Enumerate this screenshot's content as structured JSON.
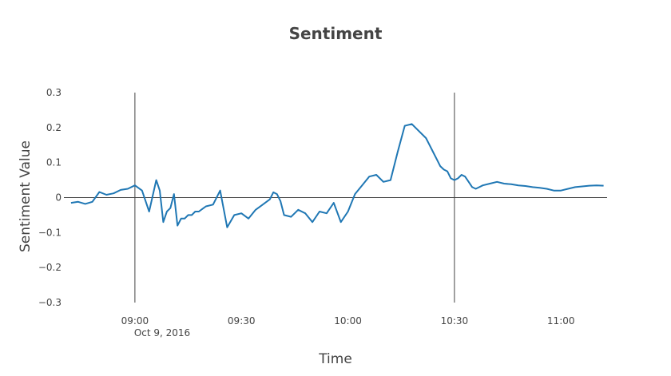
{
  "chart_data": {
    "type": "line",
    "title": "Sentiment",
    "xlabel": "Time",
    "ylabel": "Sentiment Value",
    "x_date_label": "Oct 9, 2016",
    "xlim": [
      "08:40",
      "11:13"
    ],
    "ylim": [
      -0.3,
      0.3
    ],
    "x_ticks": [
      "09:00",
      "09:30",
      "10:00",
      "10:30",
      "11:00"
    ],
    "y_ticks": [
      {
        "value": 0.3,
        "label": "0.3"
      },
      {
        "value": 0.2,
        "label": "0.2"
      },
      {
        "value": 0.1,
        "label": "0.1"
      },
      {
        "value": 0,
        "label": "0"
      },
      {
        "value": -0.1,
        "label": "−0.1"
      },
      {
        "value": -0.2,
        "label": "−0.2"
      },
      {
        "value": -0.3,
        "label": "−0.3"
      }
    ],
    "vertical_lines": [
      "09:00",
      "10:30"
    ],
    "grid": false,
    "line_color": "#1f77b4",
    "series": [
      {
        "x": [
          "08:42",
          "08:44",
          "08:46",
          "08:48",
          "08:50",
          "08:52",
          "08:54",
          "08:56",
          "08:58",
          "09:00",
          "09:02",
          "09:04",
          "09:06",
          "09:07",
          "09:08",
          "09:09",
          "09:10",
          "09:11",
          "09:12",
          "09:13",
          "09:14",
          "09:15",
          "09:16",
          "09:17",
          "09:18",
          "09:20",
          "09:22",
          "09:24",
          "09:26",
          "09:28",
          "09:30",
          "09:32",
          "09:34",
          "09:36",
          "09:38",
          "09:39",
          "09:40",
          "09:41",
          "09:42",
          "09:44",
          "09:46",
          "09:48",
          "09:50",
          "09:52",
          "09:54",
          "09:56",
          "09:58",
          "10:00",
          "10:02",
          "10:04",
          "10:06",
          "10:08",
          "10:10",
          "10:12",
          "10:14",
          "10:16",
          "10:18",
          "10:20",
          "10:22",
          "10:23",
          "10:24",
          "10:25",
          "10:26",
          "10:27",
          "10:28",
          "10:29",
          "10:30",
          "10:31",
          "10:32",
          "10:33",
          "10:34",
          "10:35",
          "10:36",
          "10:37",
          "10:38",
          "10:40",
          "10:42",
          "10:44",
          "10:46",
          "10:48",
          "10:50",
          "10:52",
          "10:54",
          "10:56",
          "10:58",
          "11:00",
          "11:02",
          "11:04",
          "11:06",
          "11:08",
          "11:10",
          "11:12"
        ],
        "y": [
          -0.015,
          -0.012,
          -0.018,
          -0.012,
          0.016,
          0.008,
          0.012,
          0.022,
          0.025,
          0.035,
          0.02,
          -0.04,
          0.05,
          0.02,
          -0.07,
          -0.04,
          -0.03,
          0.01,
          -0.08,
          -0.06,
          -0.06,
          -0.05,
          -0.05,
          -0.04,
          -0.04,
          -0.025,
          -0.02,
          0.02,
          -0.085,
          -0.05,
          -0.045,
          -0.06,
          -0.035,
          -0.02,
          -0.005,
          0.015,
          0.01,
          -0.01,
          -0.05,
          -0.055,
          -0.035,
          -0.045,
          -0.07,
          -0.04,
          -0.045,
          -0.015,
          -0.07,
          -0.04,
          0.01,
          0.035,
          0.06,
          0.065,
          0.045,
          0.05,
          0.13,
          0.205,
          0.21,
          0.19,
          0.17,
          0.15,
          0.13,
          0.11,
          0.09,
          0.08,
          0.075,
          0.055,
          0.05,
          0.055,
          0.065,
          0.06,
          0.045,
          0.03,
          0.025,
          0.03,
          0.035,
          0.04,
          0.045,
          0.04,
          0.038,
          0.035,
          0.033,
          0.03,
          0.028,
          0.025,
          0.02,
          0.02,
          0.025,
          0.03,
          0.032,
          0.034,
          0.035,
          0.034
        ]
      }
    ]
  }
}
